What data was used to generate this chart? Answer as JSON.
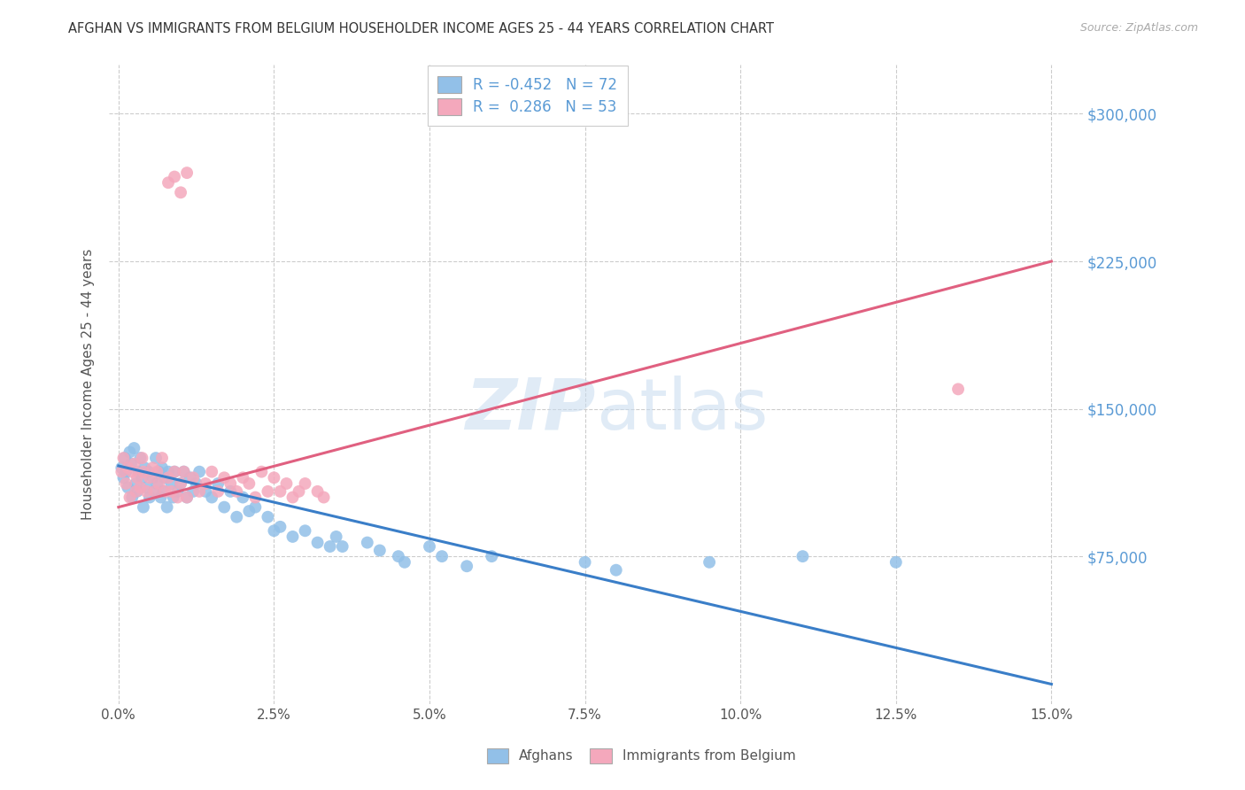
{
  "title": "AFGHAN VS IMMIGRANTS FROM BELGIUM HOUSEHOLDER INCOME AGES 25 - 44 YEARS CORRELATION CHART",
  "source": "Source: ZipAtlas.com",
  "ylabel": "Householder Income Ages 25 - 44 years",
  "xlabel_ticks": [
    "0.0%",
    "2.5%",
    "5.0%",
    "7.5%",
    "10.0%",
    "12.5%",
    "15.0%"
  ],
  "xlabel_vals": [
    0.0,
    2.5,
    5.0,
    7.5,
    10.0,
    12.5,
    15.0
  ],
  "ylim": [
    0,
    325000
  ],
  "xlim": [
    -0.15,
    15.5
  ],
  "ytick_labels": [
    "$75,000",
    "$150,000",
    "$225,000",
    "$300,000"
  ],
  "ytick_vals": [
    75000,
    150000,
    225000,
    300000
  ],
  "afghan_R": -0.452,
  "afghan_N": 72,
  "belgium_R": 0.286,
  "belgium_N": 53,
  "legend_label_1": "R = -0.452   N = 72",
  "legend_label_2": "R =  0.286   N = 53",
  "afghan_color": "#92C0E8",
  "belgium_color": "#F4A8BC",
  "afghan_line_color": "#3A7EC8",
  "belgium_line_color": "#E06080",
  "background_color": "#FFFFFF",
  "grid_color": "#CCCCCC",
  "afghan_line_x0": 0.0,
  "afghan_line_y0": 121000,
  "afghan_line_x1": 15.0,
  "afghan_line_y1": 10000,
  "belgium_line_x0": 0.0,
  "belgium_line_y0": 100000,
  "belgium_line_x1": 15.0,
  "belgium_line_y1": 225000,
  "afghan_x": [
    0.05,
    0.08,
    0.1,
    0.12,
    0.15,
    0.18,
    0.2,
    0.22,
    0.25,
    0.28,
    0.3,
    0.32,
    0.35,
    0.38,
    0.4,
    0.42,
    0.45,
    0.48,
    0.5,
    0.55,
    0.58,
    0.6,
    0.62,
    0.65,
    0.68,
    0.7,
    0.72,
    0.75,
    0.78,
    0.8,
    0.85,
    0.88,
    0.9,
    0.95,
    1.0,
    1.05,
    1.1,
    1.15,
    1.2,
    1.25,
    1.3,
    1.4,
    1.5,
    1.6,
    1.7,
    1.8,
    1.9,
    2.0,
    2.1,
    2.2,
    2.4,
    2.5,
    2.6,
    2.8,
    3.0,
    3.2,
    3.4,
    3.5,
    3.6,
    4.0,
    4.2,
    4.5,
    4.6,
    5.0,
    5.2,
    5.6,
    6.0,
    7.5,
    8.0,
    9.5,
    11.0,
    12.5
  ],
  "afghan_y": [
    120000,
    115000,
    125000,
    118000,
    110000,
    128000,
    122000,
    105000,
    130000,
    112000,
    108000,
    118000,
    125000,
    115000,
    100000,
    120000,
    110000,
    118000,
    105000,
    115000,
    108000,
    125000,
    112000,
    118000,
    105000,
    120000,
    108000,
    115000,
    100000,
    118000,
    112000,
    105000,
    118000,
    108000,
    112000,
    118000,
    105000,
    115000,
    108000,
    112000,
    118000,
    108000,
    105000,
    112000,
    100000,
    108000,
    95000,
    105000,
    98000,
    100000,
    95000,
    88000,
    90000,
    85000,
    88000,
    82000,
    80000,
    85000,
    80000,
    82000,
    78000,
    75000,
    72000,
    80000,
    75000,
    70000,
    75000,
    72000,
    68000,
    72000,
    75000,
    72000
  ],
  "belgium_x": [
    0.05,
    0.08,
    0.12,
    0.15,
    0.18,
    0.22,
    0.25,
    0.28,
    0.3,
    0.35,
    0.38,
    0.4,
    0.45,
    0.5,
    0.55,
    0.58,
    0.62,
    0.65,
    0.7,
    0.75,
    0.8,
    0.85,
    0.9,
    0.95,
    1.0,
    1.05,
    1.1,
    1.2,
    1.3,
    1.4,
    1.5,
    1.6,
    1.7,
    1.8,
    1.9,
    2.0,
    2.1,
    2.2,
    2.3,
    2.4,
    2.5,
    2.6,
    2.7,
    2.8,
    2.9,
    3.0,
    3.2,
    3.3,
    0.8,
    0.9,
    1.0,
    1.1,
    13.5
  ],
  "belgium_y": [
    118000,
    125000,
    112000,
    120000,
    105000,
    118000,
    122000,
    108000,
    115000,
    110000,
    125000,
    118000,
    108000,
    115000,
    120000,
    108000,
    118000,
    112000,
    125000,
    108000,
    115000,
    108000,
    118000,
    105000,
    112000,
    118000,
    105000,
    115000,
    108000,
    112000,
    118000,
    108000,
    115000,
    112000,
    108000,
    115000,
    112000,
    105000,
    118000,
    108000,
    115000,
    108000,
    112000,
    105000,
    108000,
    112000,
    108000,
    105000,
    265000,
    268000,
    260000,
    270000,
    160000
  ]
}
